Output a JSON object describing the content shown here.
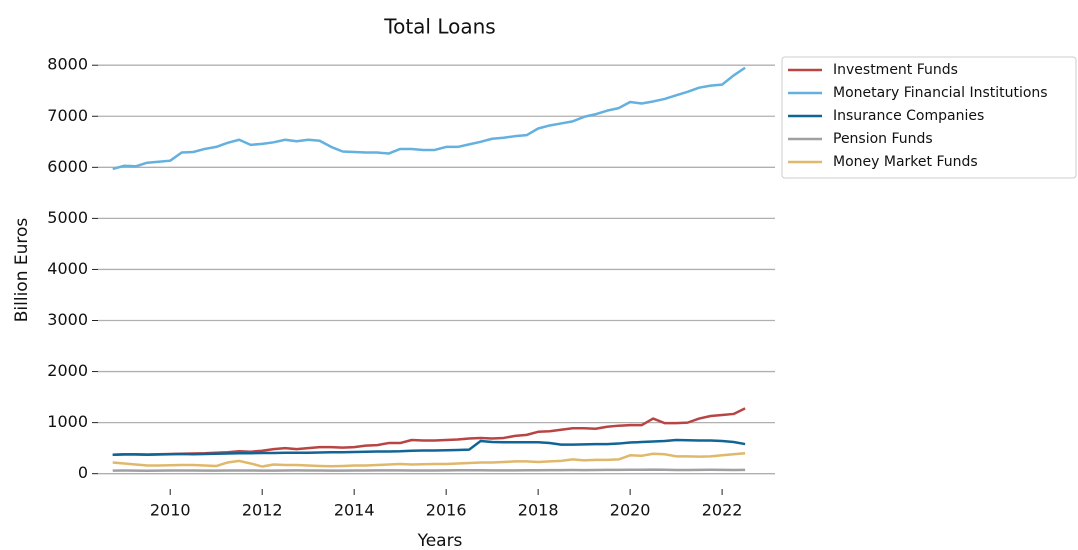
{
  "chart_data": {
    "type": "line",
    "title": "Total Loans",
    "x_label": "Years",
    "y_label": "Billion Euros",
    "x": [
      2008.75,
      2009,
      2009.25,
      2009.5,
      2009.75,
      2010,
      2010.25,
      2010.5,
      2010.75,
      2011,
      2011.25,
      2011.5,
      2011.75,
      2012,
      2012.25,
      2012.5,
      2012.75,
      2013,
      2013.25,
      2013.5,
      2013.75,
      2014,
      2014.25,
      2014.5,
      2014.75,
      2015,
      2015.25,
      2015.5,
      2015.75,
      2016,
      2016.25,
      2016.5,
      2016.75,
      2017,
      2017.25,
      2017.5,
      2017.75,
      2018,
      2018.25,
      2018.5,
      2018.75,
      2019,
      2019.25,
      2019.5,
      2019.75,
      2020,
      2020.25,
      2020.5,
      2020.75,
      2021,
      2021.25,
      2021.5,
      2021.75,
      2022,
      2022.25,
      2022.5
    ],
    "series": [
      {
        "name": "Investment Funds",
        "color": "#b84444",
        "values": [
          370,
          380,
          380,
          375,
          380,
          385,
          390,
          395,
          400,
          410,
          420,
          440,
          430,
          450,
          480,
          500,
          480,
          500,
          520,
          520,
          510,
          520,
          550,
          560,
          600,
          600,
          660,
          650,
          650,
          660,
          670,
          690,
          700,
          690,
          700,
          740,
          760,
          820,
          830,
          860,
          890,
          890,
          880,
          920,
          940,
          950,
          950,
          1080,
          990,
          990,
          1000,
          1080,
          1130,
          1150,
          1170,
          1280
        ]
      },
      {
        "name": "Monetary Financial Institutions",
        "color": "#64b0de",
        "values": [
          5970,
          6030,
          6020,
          6090,
          6110,
          6130,
          6290,
          6300,
          6360,
          6400,
          6480,
          6540,
          6440,
          6460,
          6490,
          6540,
          6510,
          6540,
          6520,
          6400,
          6310,
          6300,
          6290,
          6290,
          6270,
          6360,
          6360,
          6340,
          6340,
          6400,
          6400,
          6450,
          6500,
          6560,
          6580,
          6610,
          6630,
          6760,
          6820,
          6860,
          6900,
          6990,
          7040,
          7110,
          7160,
          7280,
          7250,
          7290,
          7340,
          7410,
          7480,
          7560,
          7600,
          7620,
          7800,
          7950
        ]
      },
      {
        "name": "Insurance Companies",
        "color": "#116596",
        "values": [
          370,
          375,
          375,
          370,
          375,
          380,
          385,
          380,
          385,
          390,
          395,
          400,
          400,
          405,
          405,
          410,
          410,
          410,
          415,
          420,
          420,
          425,
          430,
          435,
          435,
          440,
          450,
          455,
          455,
          460,
          465,
          470,
          640,
          620,
          615,
          615,
          615,
          615,
          600,
          570,
          570,
          575,
          580,
          580,
          590,
          610,
          620,
          630,
          640,
          660,
          655,
          650,
          650,
          640,
          620,
          580
        ]
      },
      {
        "name": "Pension Funds",
        "color": "#a0a0a4",
        "values": [
          60,
          62,
          60,
          58,
          60,
          62,
          63,
          62,
          60,
          60,
          62,
          63,
          62,
          60,
          60,
          62,
          64,
          63,
          62,
          60,
          60,
          62,
          63,
          64,
          65,
          64,
          62,
          62,
          63,
          65,
          66,
          68,
          66,
          64,
          64,
          65,
          66,
          68,
          70,
          70,
          72,
          70,
          72,
          74,
          75,
          76,
          78,
          80,
          76,
          72,
          72,
          74,
          76,
          75,
          72,
          75
        ]
      },
      {
        "name": "Money Market Funds",
        "color": "#e0b86c",
        "values": [
          220,
          200,
          180,
          160,
          160,
          165,
          170,
          170,
          160,
          150,
          220,
          250,
          200,
          140,
          180,
          170,
          170,
          160,
          150,
          145,
          150,
          160,
          160,
          170,
          180,
          190,
          180,
          185,
          190,
          190,
          200,
          210,
          220,
          220,
          230,
          240,
          240,
          230,
          240,
          250,
          280,
          260,
          270,
          270,
          280,
          360,
          350,
          390,
          380,
          340,
          340,
          335,
          340,
          360,
          380,
          400
        ]
      }
    ],
    "xlim": [
      2008.43,
      2023.15
    ],
    "ylim": [
      -300,
      8200
    ],
    "xticks": [
      2010,
      2012,
      2014,
      2016,
      2018,
      2020,
      2022
    ],
    "yticks": [
      0,
      1000,
      2000,
      3000,
      4000,
      5000,
      6000,
      7000,
      8000
    ],
    "grid": true,
    "legend": "upper right outside"
  }
}
